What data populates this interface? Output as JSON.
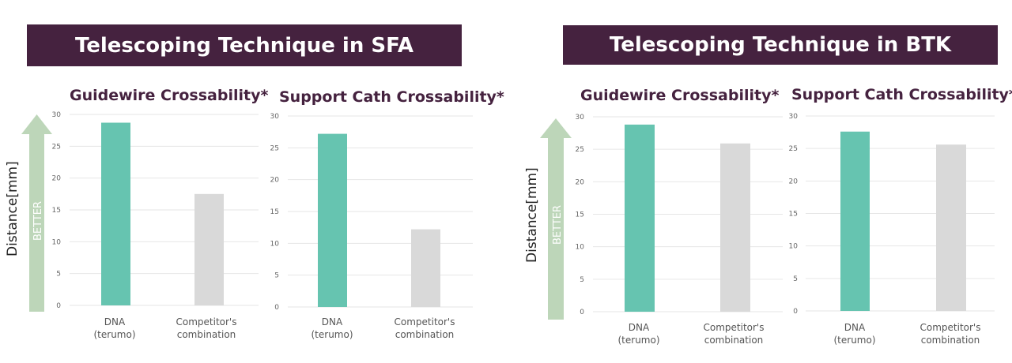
{
  "panels": [
    {
      "banner": "Telescoping Technique in SFA",
      "ylabel": "Distance[mm]",
      "arrow_label": "BETTER"
    },
    {
      "banner": "Telescoping Technique in BTK",
      "ylabel": "Distance[mm]",
      "arrow_label": "BETTER"
    }
  ],
  "colors": {
    "banner": "#45223f",
    "dna_bar": "#66c4b0",
    "competitor_bar": "#d9d9d9",
    "arrow": "#bdd6b9",
    "grid": "#e6e6e6"
  },
  "chart_data": [
    {
      "type": "bar",
      "title": "Guidewire Crossability*",
      "categories": [
        "DNA\n(terumo)",
        "Competitor's\ncombination"
      ],
      "values": [
        28.7,
        17.5
      ],
      "yticks": [
        0,
        5,
        10,
        15,
        20,
        25,
        30
      ],
      "ylim": [
        0,
        30
      ],
      "grid": true
    },
    {
      "type": "bar",
      "title": "Support Cath Crossability*",
      "categories": [
        "DNA\n(terumo)",
        "Competitor's\ncombination"
      ],
      "values": [
        27.2,
        12.2
      ],
      "yticks": [
        0,
        5,
        10,
        15,
        20,
        25,
        30
      ],
      "ylim": [
        0,
        30
      ],
      "grid": true
    },
    {
      "type": "bar",
      "title": "Guidewire Crossability*",
      "categories": [
        "DNA\n(terumo)",
        "Competitor's\ncombination"
      ],
      "values": [
        28.8,
        25.9
      ],
      "yticks": [
        0,
        5,
        10,
        15,
        20,
        25,
        30
      ],
      "ylim": [
        0,
        30
      ],
      "grid": true
    },
    {
      "type": "bar",
      "title": "Support Cath Crossability*",
      "categories": [
        "DNA\n(terumo)",
        "Competitor's\ncombination"
      ],
      "values": [
        27.6,
        25.6
      ],
      "yticks": [
        0,
        5,
        10,
        15,
        20,
        25,
        30
      ],
      "ylim": [
        0,
        30
      ],
      "grid": true
    }
  ]
}
